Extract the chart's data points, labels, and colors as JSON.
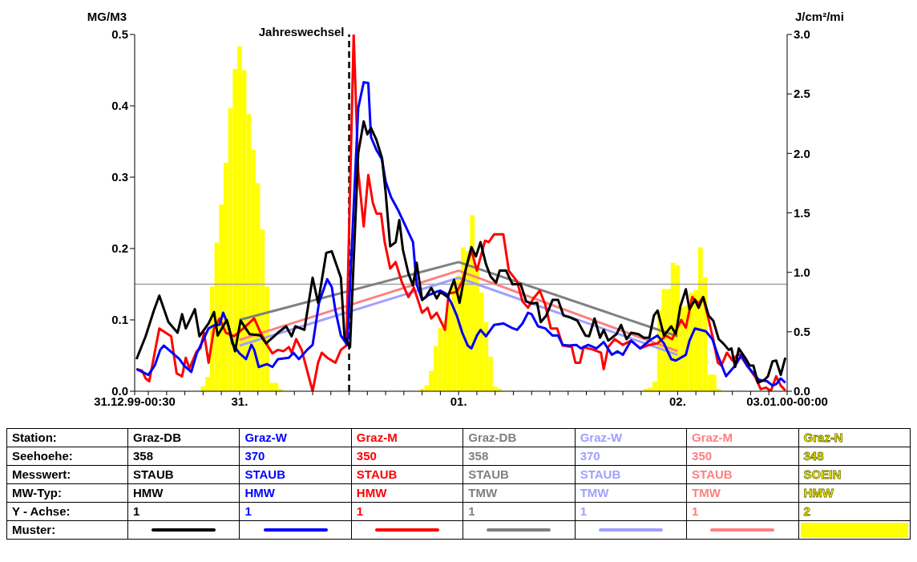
{
  "chart_data": {
    "type": "line",
    "ylabel": "MG/M3",
    "y2label": "J/cm²/mi",
    "xlim": [
      "1999-12-31T00:30",
      "2000-01-03T00:00"
    ],
    "xticks": [
      {
        "value": "1999-12-31T00:30",
        "label": "31.12.99-00:30"
      },
      {
        "value": "1999-12-31T02:00",
        "label": null
      },
      {
        "value": "1999-12-31T04:00",
        "label": null
      },
      {
        "value": "1999-12-31T06:00",
        "label": null
      },
      {
        "value": "1999-12-31T08:00",
        "label": null
      },
      {
        "value": "1999-12-31T10:00",
        "label": null
      },
      {
        "value": "1999-12-31T12:00",
        "label": "31."
      },
      {
        "value": "1999-12-31T14:00",
        "label": null
      },
      {
        "value": "1999-12-31T16:00",
        "label": null
      },
      {
        "value": "1999-12-31T18:00",
        "label": null
      },
      {
        "value": "1999-12-31T20:00",
        "label": null
      },
      {
        "value": "1999-12-31T22:00",
        "label": null
      },
      {
        "value": "2000-01-01T00:00",
        "label": null
      },
      {
        "value": "2000-01-01T02:00",
        "label": null
      },
      {
        "value": "2000-01-01T04:00",
        "label": null
      },
      {
        "value": "2000-01-01T06:00",
        "label": null
      },
      {
        "value": "2000-01-01T08:00",
        "label": null
      },
      {
        "value": "2000-01-01T10:00",
        "label": null
      },
      {
        "value": "2000-01-01T12:00",
        "label": "01."
      },
      {
        "value": "2000-01-01T14:00",
        "label": null
      },
      {
        "value": "2000-01-01T16:00",
        "label": null
      },
      {
        "value": "2000-01-01T18:00",
        "label": null
      },
      {
        "value": "2000-01-01T20:00",
        "label": null
      },
      {
        "value": "2000-01-01T22:00",
        "label": null
      },
      {
        "value": "2000-01-02T00:00",
        "label": null
      },
      {
        "value": "2000-01-02T02:00",
        "label": null
      },
      {
        "value": "2000-01-02T04:00",
        "label": null
      },
      {
        "value": "2000-01-02T06:00",
        "label": null
      },
      {
        "value": "2000-01-02T08:00",
        "label": null
      },
      {
        "value": "2000-01-02T10:00",
        "label": null
      },
      {
        "value": "2000-01-02T12:00",
        "label": "02."
      },
      {
        "value": "2000-01-02T14:00",
        "label": null
      },
      {
        "value": "2000-01-02T16:00",
        "label": null
      },
      {
        "value": "2000-01-02T18:00",
        "label": null
      },
      {
        "value": "2000-01-02T20:00",
        "label": null
      },
      {
        "value": "2000-01-02T22:00",
        "label": null
      },
      {
        "value": "2000-01-03T00:00",
        "label": "03.01.00-00:00"
      }
    ],
    "ylim": [
      0,
      0.5
    ],
    "yticks": [
      {
        "value": 0,
        "label": "0.0"
      },
      0.1,
      0.2,
      0.3,
      0.4,
      0.5
    ],
    "y2lim": [
      0,
      3
    ],
    "y2ticks": [
      {
        "value": 0,
        "label": "0.0"
      },
      0.5,
      {
        "value": 1,
        "label": "1.0"
      },
      1.5,
      {
        "value": 2,
        "label": "2.0"
      },
      2.5,
      {
        "value": 3,
        "label": "3.0"
      }
    ],
    "marker": "none",
    "legend": "bottom",
    "ref_lines": [
      {
        "axis": "y",
        "value": 0.15,
        "label": null,
        "color": "#a0a0a0"
      },
      {
        "axis": "x",
        "value": "2000-01-01T00:00",
        "label": "Jahreswechsel",
        "color": "#000000",
        "line_style": "dashed"
      }
    ],
    "series": [
      {
        "name": "Graz-DB",
        "color": "#000000",
        "x": [
          "1999-12-31T00:42",
          "1999-12-31T01:42",
          "1999-12-31T02:36",
          "1999-12-31T03:12",
          "1999-12-31T04:12",
          "1999-12-31T05:12",
          "1999-12-31T05:42",
          "1999-12-31T06:06",
          "1999-12-31T07:06",
          "1999-12-31T07:36",
          "1999-12-31T08:36",
          "1999-12-31T09:12",
          "1999-12-31T09:36",
          "1999-12-31T10:36",
          "1999-12-31T11:30",
          "1999-12-31T12:06",
          "1999-12-31T13:06",
          "1999-12-31T14:18",
          "1999-12-31T14:54",
          "1999-12-31T16:12",
          "1999-12-31T17:06",
          "1999-12-31T17:42",
          "1999-12-31T18:06",
          "1999-12-31T19:06",
          "1999-12-31T20:00",
          "1999-12-31T20:36",
          "1999-12-31T21:30",
          "1999-12-31T22:06",
          "1999-12-31T23:06",
          "1999-12-31T23:30",
          "2000-01-01T00:06",
          "2000-01-01T01:00",
          "2000-01-01T01:36",
          "2000-01-01T02:00",
          "2000-01-01T02:24",
          "2000-01-01T03:00",
          "2000-01-01T03:36",
          "2000-01-01T04:00",
          "2000-01-01T04:30",
          "2000-01-01T05:06",
          "2000-01-01T05:30",
          "2000-01-01T05:54",
          "2000-01-01T06:30",
          "2000-01-01T07:00",
          "2000-01-01T07:24",
          "2000-01-01T08:00",
          "2000-01-01T08:24",
          "2000-01-01T09:00",
          "2000-01-01T09:36",
          "2000-01-01T10:00",
          "2000-01-01T10:48",
          "2000-01-01T11:30",
          "2000-01-01T12:06",
          "2000-01-01T12:48",
          "2000-01-01T13:24",
          "2000-01-01T13:54",
          "2000-01-01T14:24",
          "2000-01-01T15:00",
          "2000-01-01T15:30",
          "2000-01-01T16:06",
          "2000-01-01T16:30",
          "2000-01-01T17:12",
          "2000-01-01T17:54",
          "2000-01-01T18:48",
          "2000-01-01T19:24",
          "2000-01-01T20:00",
          "2000-01-01T20:36",
          "2000-01-01T21:00",
          "2000-01-01T21:36",
          "2000-01-01T22:18",
          "2000-01-01T22:54",
          "2000-01-01T23:30",
          "2000-01-02T00:06",
          "2000-01-02T01:00",
          "2000-01-02T01:54",
          "2000-01-02T02:18",
          "2000-01-02T02:54",
          "2000-01-02T03:30",
          "2000-01-02T03:54",
          "2000-01-02T04:24",
          "2000-01-02T05:18",
          "2000-01-02T05:48",
          "2000-01-02T06:24",
          "2000-01-02T06:54",
          "2000-01-02T07:42",
          "2000-01-02T08:18",
          "2000-01-02T08:54",
          "2000-01-02T09:24",
          "2000-01-02T09:48",
          "2000-01-02T10:30",
          "2000-01-02T11:18",
          "2000-01-02T11:48",
          "2000-01-02T12:18",
          "2000-01-02T12:54",
          "2000-01-02T13:18",
          "2000-01-02T13:54",
          "2000-01-02T14:18",
          "2000-01-02T14:48",
          "2000-01-02T15:24",
          "2000-01-02T15:54",
          "2000-01-02T16:30",
          "2000-01-02T17:00",
          "2000-01-02T17:36",
          "2000-01-02T17:54",
          "2000-01-02T18:18",
          "2000-01-02T18:42",
          "2000-01-02T19:30",
          "2000-01-02T19:54",
          "2000-01-02T20:18",
          "2000-01-02T20:48",
          "2000-01-02T21:30",
          "2000-01-02T21:54",
          "2000-01-02T22:24",
          "2000-01-02T22:48",
          "2000-01-02T23:18",
          "2000-01-02T23:48"
        ],
        "values": [
          0.045,
          0.077,
          0.113,
          0.134,
          0.097,
          0.082,
          0.108,
          0.088,
          0.115,
          0.077,
          0.095,
          0.111,
          0.078,
          0.1,
          0.056,
          0.099,
          0.08,
          0.078,
          0.067,
          0.082,
          0.091,
          0.077,
          0.091,
          0.086,
          0.159,
          0.124,
          0.194,
          0.196,
          0.159,
          0.075,
          0.062,
          0.334,
          0.378,
          0.36,
          0.369,
          0.352,
          0.327,
          0.279,
          0.203,
          0.209,
          0.24,
          0.198,
          0.165,
          0.148,
          0.18,
          0.128,
          0.132,
          0.145,
          0.13,
          0.139,
          0.132,
          0.156,
          0.124,
          0.172,
          0.202,
          0.189,
          0.209,
          0.178,
          0.161,
          0.152,
          0.169,
          0.169,
          0.15,
          0.15,
          0.126,
          0.123,
          0.124,
          0.097,
          0.106,
          0.128,
          0.128,
          0.106,
          0.104,
          0.099,
          0.078,
          0.077,
          0.102,
          0.075,
          0.086,
          0.071,
          0.08,
          0.093,
          0.073,
          0.082,
          0.08,
          0.075,
          0.075,
          0.106,
          0.113,
          0.078,
          0.091,
          0.08,
          0.119,
          0.143,
          0.115,
          0.128,
          0.117,
          0.132,
          0.106,
          0.099,
          0.073,
          0.067,
          0.058,
          0.06,
          0.034,
          0.06,
          0.045,
          0.036,
          0.036,
          0.012,
          0.016,
          0.021,
          0.042,
          0.043,
          0.023,
          0.047
        ]
      },
      {
        "name": "Graz-W",
        "color": "#0000ff",
        "x": [
          "1999-12-31T00:42",
          "1999-12-31T02:00",
          "1999-12-31T02:42",
          "1999-12-31T03:18",
          "1999-12-31T03:42",
          "1999-12-31T04:36",
          "1999-12-31T05:24",
          "1999-12-31T05:54",
          "1999-12-31T06:42",
          "1999-12-31T07:18",
          "1999-12-31T07:54",
          "1999-12-31T08:36",
          "1999-12-31T09:18",
          "1999-12-31T09:48",
          "1999-12-31T10:12",
          "1999-12-31T10:48",
          "1999-12-31T11:12",
          "1999-12-31T12:00",
          "1999-12-31T12:42",
          "1999-12-31T13:18",
          "1999-12-31T13:36",
          "1999-12-31T14:06",
          "1999-12-31T15:00",
          "1999-12-31T15:36",
          "1999-12-31T16:12",
          "1999-12-31T17:24",
          "1999-12-31T17:54",
          "1999-12-31T18:30",
          "1999-12-31T19:24",
          "1999-12-31T20:00",
          "1999-12-31T20:42",
          "1999-12-31T21:36",
          "1999-12-31T22:06",
          "1999-12-31T22:30",
          "1999-12-31T23:06",
          "1999-12-31T23:48",
          "2000-01-01T01:00",
          "2000-01-01T01:36",
          "2000-01-01T02:06",
          "2000-01-01T02:24",
          "2000-01-01T03:00",
          "2000-01-01T03:36",
          "2000-01-01T04:00",
          "2000-01-01T04:36",
          "2000-01-01T05:24",
          "2000-01-01T06:12",
          "2000-01-01T07:00",
          "2000-01-01T07:24",
          "2000-01-01T08:00",
          "2000-01-01T08:36",
          "2000-01-01T09:30",
          "2000-01-01T10:00",
          "2000-01-01T10:36",
          "2000-01-01T11:12",
          "2000-01-01T11:48",
          "2000-01-01T12:24",
          "2000-01-01T13:00",
          "2000-01-01T13:24",
          "2000-01-01T14:00",
          "2000-01-01T14:24",
          "2000-01-01T15:00",
          "2000-01-01T15:54",
          "2000-01-01T16:54",
          "2000-01-01T17:48",
          "2000-01-01T18:24",
          "2000-01-01T19:00",
          "2000-01-01T19:36",
          "2000-01-01T20:00",
          "2000-01-01T20:42",
          "2000-01-01T21:30",
          "2000-01-01T22:18",
          "2000-01-01T22:54",
          "2000-01-01T23:24",
          "2000-01-02T00:06",
          "2000-01-02T00:54",
          "2000-01-02T01:24",
          "2000-01-02T02:12",
          "2000-01-02T03:06",
          "2000-01-02T03:54",
          "2000-01-02T04:48",
          "2000-01-02T05:24",
          "2000-01-02T06:00",
          "2000-01-02T06:54",
          "2000-01-02T07:54",
          "2000-01-02T08:54",
          "2000-01-02T09:48",
          "2000-01-02T10:30",
          "2000-01-02T11:18",
          "2000-01-02T11:48",
          "2000-01-02T12:54",
          "2000-01-02T13:18",
          "2000-01-02T13:54",
          "2000-01-02T15:06",
          "2000-01-02T15:48",
          "2000-01-02T16:30",
          "2000-01-02T17:18",
          "2000-01-02T18:18",
          "2000-01-02T19:00",
          "2000-01-02T19:36",
          "2000-01-02T20:54",
          "2000-01-02T21:48",
          "2000-01-02T22:24",
          "2000-01-02T22:48",
          "2000-01-02T23:18",
          "2000-01-02T23:48"
        ],
        "values": [
          0.031,
          0.023,
          0.036,
          0.058,
          0.064,
          0.054,
          0.045,
          0.036,
          0.027,
          0.053,
          0.069,
          0.088,
          0.093,
          0.093,
          0.11,
          0.091,
          0.067,
          0.053,
          0.045,
          0.065,
          0.058,
          0.034,
          0.038,
          0.034,
          0.045,
          0.047,
          0.054,
          0.045,
          0.058,
          0.065,
          0.124,
          0.157,
          0.146,
          0.113,
          0.078,
          0.065,
          0.397,
          0.433,
          0.432,
          0.356,
          0.338,
          0.325,
          0.294,
          0.272,
          0.253,
          0.231,
          0.209,
          0.15,
          0.128,
          0.134,
          0.139,
          0.141,
          0.137,
          0.124,
          0.106,
          0.082,
          0.064,
          0.06,
          0.078,
          0.086,
          0.077,
          0.093,
          0.095,
          0.089,
          0.086,
          0.095,
          0.11,
          0.108,
          0.091,
          0.088,
          0.078,
          0.078,
          0.065,
          0.064,
          0.065,
          0.06,
          0.065,
          0.06,
          0.069,
          0.051,
          0.056,
          0.051,
          0.071,
          0.06,
          0.071,
          0.078,
          0.067,
          0.045,
          0.043,
          0.051,
          0.071,
          0.088,
          0.084,
          0.073,
          0.047,
          0.021,
          0.036,
          0.051,
          0.036,
          0.016,
          0.014,
          0.008,
          0.01,
          0.018,
          0.012
        ]
      },
      {
        "name": "Graz-M",
        "color": "#ff0000",
        "x": [
          "1999-12-31T00:42",
          "1999-12-31T01:18",
          "1999-12-31T01:42",
          "1999-12-31T02:06",
          "1999-12-31T03:12",
          "1999-12-31T04:30",
          "1999-12-31T05:06",
          "1999-12-31T05:42",
          "1999-12-31T06:06",
          "1999-12-31T06:30",
          "1999-12-31T07:18",
          "1999-12-31T07:42",
          "1999-12-31T08:06",
          "1999-12-31T08:36",
          "1999-12-31T09:12",
          "1999-12-31T09:48",
          "1999-12-31T10:30",
          "1999-12-31T11:24",
          "1999-12-31T12:24",
          "1999-12-31T13:36",
          "1999-12-31T14:18",
          "1999-12-31T15:00",
          "1999-12-31T15:36",
          "1999-12-31T16:12",
          "1999-12-31T16:48",
          "1999-12-31T17:24",
          "1999-12-31T17:42",
          "1999-12-31T18:12",
          "1999-12-31T18:48",
          "1999-12-31T20:00",
          "1999-12-31T20:36",
          "1999-12-31T21:00",
          "1999-12-31T21:36",
          "1999-12-31T22:30",
          "1999-12-31T23:06",
          "1999-12-31T23:42",
          "2000-01-01T00:30",
          "2000-01-01T01:00",
          "2000-01-01T01:36",
          "2000-01-01T02:06",
          "2000-01-01T02:36",
          "2000-01-01T03:00",
          "2000-01-01T03:30",
          "2000-01-01T03:54",
          "2000-01-01T04:30",
          "2000-01-01T05:06",
          "2000-01-01T05:48",
          "2000-01-01T06:30",
          "2000-01-01T07:06",
          "2000-01-01T08:00",
          "2000-01-01T08:36",
          "2000-01-01T09:00",
          "2000-01-01T09:36",
          "2000-01-01T10:30",
          "2000-01-01T10:54",
          "2000-01-01T11:48",
          "2000-01-01T12:24",
          "2000-01-01T13:24",
          "2000-01-01T14:00",
          "2000-01-01T14:54",
          "2000-01-01T15:18",
          "2000-01-01T15:54",
          "2000-01-01T16:54",
          "2000-01-01T17:30",
          "2000-01-01T18:24",
          "2000-01-01T19:00",
          "2000-01-01T19:36",
          "2000-01-01T20:12",
          "2000-01-01T20:54",
          "2000-01-01T21:30",
          "2000-01-01T22:06",
          "2000-01-01T22:48",
          "2000-01-01T23:24",
          "2000-01-02T00:24",
          "2000-01-02T00:48",
          "2000-01-02T01:18",
          "2000-01-02T01:42",
          "2000-01-02T02:48",
          "2000-01-02T03:36",
          "2000-01-02T03:54",
          "2000-01-02T04:24",
          "2000-01-02T05:06",
          "2000-01-02T06:00",
          "2000-01-02T06:54",
          "2000-01-02T07:54",
          "2000-01-02T08:54",
          "2000-01-02T09:48",
          "2000-01-02T10:42",
          "2000-01-02T11:24",
          "2000-01-02T11:48",
          "2000-01-02T12:24",
          "2000-01-02T12:54",
          "2000-01-02T13:36",
          "2000-01-02T14:18",
          "2000-01-02T14:48",
          "2000-01-02T15:24",
          "2000-01-02T15:54",
          "2000-01-02T16:24",
          "2000-01-02T16:48",
          "2000-01-02T17:24",
          "2000-01-02T18:00",
          "2000-01-02T18:42",
          "2000-01-02T19:36",
          "2000-01-02T20:30",
          "2000-01-02T21:06",
          "2000-01-02T21:42",
          "2000-01-02T22:12",
          "2000-01-02T22:48",
          "2000-01-02T23:18",
          "2000-01-02T23:48"
        ],
        "values": [
          0.031,
          0.029,
          0.018,
          0.014,
          0.088,
          0.077,
          0.025,
          0.021,
          0.047,
          0.032,
          0.056,
          0.06,
          0.082,
          0.04,
          0.088,
          0.102,
          0.082,
          0.077,
          0.088,
          0.102,
          0.082,
          0.065,
          0.053,
          0.058,
          0.056,
          0.062,
          0.054,
          0.073,
          0.058,
          0.0,
          0.04,
          0.054,
          0.047,
          0.04,
          0.058,
          0.064,
          0.5,
          0.308,
          0.231,
          0.303,
          0.264,
          0.249,
          0.249,
          0.209,
          0.172,
          0.181,
          0.152,
          0.132,
          0.145,
          0.11,
          0.117,
          0.102,
          0.11,
          0.086,
          0.137,
          0.139,
          0.154,
          0.198,
          0.169,
          0.211,
          0.209,
          0.22,
          0.22,
          0.169,
          0.154,
          0.126,
          0.117,
          0.13,
          0.141,
          0.121,
          0.088,
          0.088,
          0.064,
          0.062,
          0.04,
          0.04,
          0.062,
          0.058,
          0.054,
          0.031,
          0.062,
          0.073,
          0.065,
          0.071,
          0.06,
          0.065,
          0.067,
          0.078,
          0.073,
          0.084,
          0.1,
          0.089,
          0.132,
          0.123,
          0.132,
          0.1,
          0.073,
          0.04,
          0.036,
          0.054,
          0.043,
          0.053,
          0.036,
          0.02,
          0.003,
          0.005,
          0.0,
          0.021,
          0.008,
          0.001
        ]
      },
      {
        "name": "Graz-DB",
        "color": "#808080",
        "x": [
          "1999-12-31T12:00",
          "2000-01-01T12:00",
          "2000-01-02T12:00"
        ],
        "values": [
          0.1,
          0.181,
          0.077
        ]
      },
      {
        "name": "Graz-W",
        "color": "#a0a0ff",
        "x": [
          "1999-12-31T12:00",
          "2000-01-01T12:00",
          "2000-01-02T12:00"
        ],
        "values": [
          0.064,
          0.159,
          0.051
        ]
      },
      {
        "name": "Graz-M",
        "color": "#ff8080",
        "x": [
          "1999-12-31T12:00",
          "2000-01-01T12:00",
          "2000-01-02T12:00"
        ],
        "values": [
          0.072,
          0.169,
          0.056
        ]
      },
      {
        "name": "Graz-N",
        "type": "bar",
        "axis": "y2",
        "color": "#ffff00",
        "x": [
          "1999-12-31T08:00",
          "1999-12-31T08:30",
          "1999-12-31T09:00",
          "1999-12-31T09:30",
          "1999-12-31T10:00",
          "1999-12-31T10:30",
          "1999-12-31T11:00",
          "1999-12-31T11:30",
          "1999-12-31T12:00",
          "1999-12-31T12:30",
          "1999-12-31T13:00",
          "1999-12-31T13:30",
          "1999-12-31T14:00",
          "1999-12-31T14:30",
          "1999-12-31T15:00",
          "1999-12-31T15:30",
          "1999-12-31T16:00",
          "1999-12-31T16:30",
          "2000-01-01T08:00",
          "2000-01-01T08:30",
          "2000-01-01T09:00",
          "2000-01-01T09:30",
          "2000-01-01T10:00",
          "2000-01-01T10:30",
          "2000-01-01T11:00",
          "2000-01-01T11:30",
          "2000-01-01T12:00",
          "2000-01-01T12:30",
          "2000-01-01T13:00",
          "2000-01-01T13:30",
          "2000-01-01T14:00",
          "2000-01-01T14:30",
          "2000-01-01T15:00",
          "2000-01-01T15:30",
          "2000-01-01T16:00",
          "2000-01-01T16:30",
          "2000-01-02T08:30",
          "2000-01-02T09:00",
          "2000-01-02T09:30",
          "2000-01-02T10:00",
          "2000-01-02T10:30",
          "2000-01-02T11:00",
          "2000-01-02T11:30",
          "2000-01-02T12:00",
          "2000-01-02T12:30",
          "2000-01-02T13:00",
          "2000-01-02T13:30",
          "2000-01-02T14:00",
          "2000-01-02T14:30",
          "2000-01-02T15:00",
          "2000-01-02T15:30",
          "2000-01-02T16:00",
          "2000-01-02T16:30"
        ],
        "values": [
          0.04,
          0.12,
          0.88,
          1.25,
          1.57,
          1.92,
          2.38,
          2.71,
          2.9,
          2.7,
          2.33,
          2.03,
          1.75,
          1.36,
          0.88,
          0.07,
          0.07,
          0.02,
          0.02,
          0.05,
          0.17,
          0.38,
          0.53,
          0.59,
          0.75,
          0.94,
          0.97,
          1.21,
          1.18,
          1.48,
          1.02,
          0.83,
          0.58,
          0.29,
          0.04,
          0.02,
          0.02,
          0.03,
          0.08,
          0.68,
          0.86,
          0.86,
          1.08,
          1.06,
          0.71,
          0.72,
          0.83,
          0.85,
          1.21,
          0.96,
          0.14,
          0.14,
          0.02
        ]
      }
    ],
    "annotations": [
      "Station:",
      "Seehoehe:",
      "Messwert:",
      "MW-Typ:",
      "Y - Achse:",
      "Muster:",
      "358",
      "STAUB",
      "HMW",
      "1",
      "370",
      "STAUB",
      "HMW",
      "1",
      "350",
      "STAUB",
      "HMW",
      "1",
      "358",
      "STAUB",
      "TMW",
      "1",
      "370",
      "STAUB",
      "TMW",
      "1",
      "350",
      "STAUB",
      "TMW",
      "1",
      "348",
      "SOEIN",
      "HMW",
      "2"
    ]
  }
}
